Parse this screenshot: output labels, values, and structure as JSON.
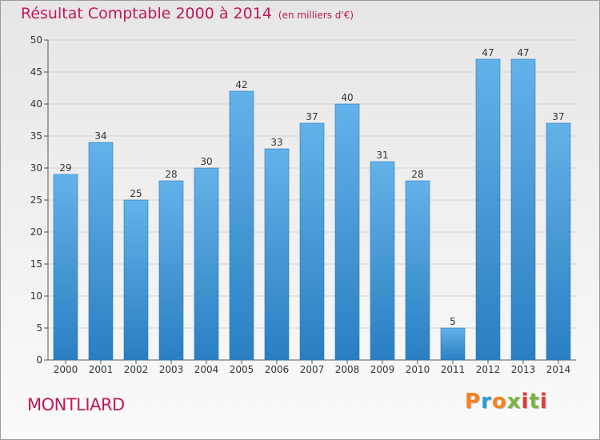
{
  "header": {
    "title": "Résultat Comptable 2000 à 2014",
    "unit": "(en milliers d'€)"
  },
  "footer": {
    "city": "MONTLIARD",
    "logo_text": "Proxiti",
    "logo_colors": [
      "#f58220",
      "#2f9bd6",
      "#f58220",
      "#7cb342",
      "#e53935",
      "#7cb342",
      "#e53935"
    ]
  },
  "colors": {
    "accent": "#c2185b",
    "bar_top": "#62b2ea",
    "bar_bottom": "#2b7ec1",
    "grid": "#d3d3d3"
  },
  "chart_data": {
    "type": "bar",
    "categories": [
      "2000",
      "2001",
      "2002",
      "2003",
      "2004",
      "2005",
      "2006",
      "2007",
      "2008",
      "2009",
      "2010",
      "2011",
      "2012",
      "2013",
      "2014"
    ],
    "values": [
      29,
      34,
      25,
      28,
      30,
      42,
      33,
      37,
      40,
      31,
      28,
      5,
      47,
      47,
      37
    ],
    "title": "Résultat Comptable 2000 à 2014",
    "subtitle": "(en milliers d'€)",
    "xlabel": "",
    "ylabel": "",
    "ylim": [
      0,
      50
    ],
    "yticks": [
      0,
      5,
      10,
      15,
      20,
      25,
      30,
      35,
      40,
      45,
      50
    ],
    "grid": true,
    "data_labels": true
  }
}
